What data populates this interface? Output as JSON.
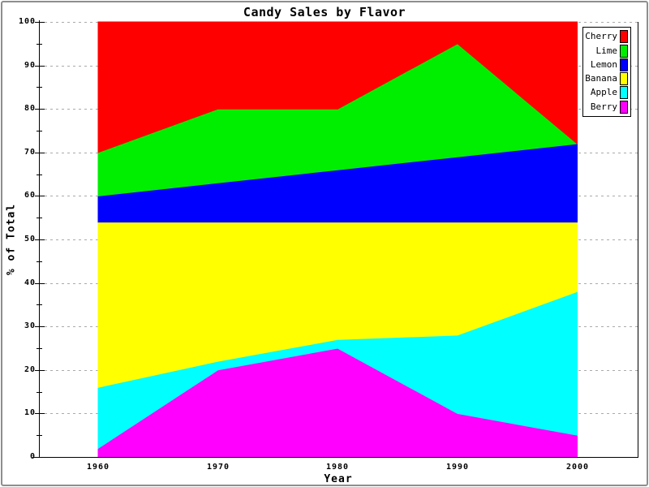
{
  "window": {
    "background": "#ffffff",
    "frame_color": "#8e8e8e"
  },
  "chart_data": {
    "type": "area",
    "stacked": true,
    "percent": true,
    "title": "Candy Sales by Flavor",
    "xlabel": "Year",
    "ylabel": "% of Total",
    "x": [
      1960,
      1970,
      1980,
      1990,
      2000
    ],
    "x_tick_labels": [
      "1960",
      "1970",
      "1980",
      "1990",
      "2000"
    ],
    "y_tick_labels": [
      "0",
      "10",
      "20",
      "30",
      "40",
      "50",
      "60",
      "70",
      "80",
      "90",
      "100"
    ],
    "ylim": [
      0,
      100
    ],
    "ytick_major": 10,
    "ytick_minor": 5,
    "grid": "horizontal-dotted",
    "gridline_color": "#aaaaaa",
    "legend_position": "top-right",
    "stack_order_note": "series listed top-of-stack first; stacked bottom-to-top as Berry, Apple, Banana, Lemon, Lime, Cherry",
    "series": [
      {
        "name": "Cherry",
        "color": "#ff0000",
        "values": [
          30,
          20,
          20,
          5,
          28
        ]
      },
      {
        "name": "Lime",
        "color": "#00ee00",
        "values": [
          10,
          17,
          14,
          26,
          0
        ]
      },
      {
        "name": "Lemon",
        "color": "#0000ff",
        "values": [
          6,
          9,
          12,
          15,
          18
        ]
      },
      {
        "name": "Banana",
        "color": "#ffff00",
        "values": [
          38,
          32,
          27,
          26,
          16
        ]
      },
      {
        "name": "Apple",
        "color": "#00ffff",
        "values": [
          14,
          2,
          2,
          18,
          33
        ]
      },
      {
        "name": "Berry",
        "color": "#ff00ff",
        "values": [
          2,
          20,
          25,
          10,
          5
        ]
      }
    ]
  }
}
